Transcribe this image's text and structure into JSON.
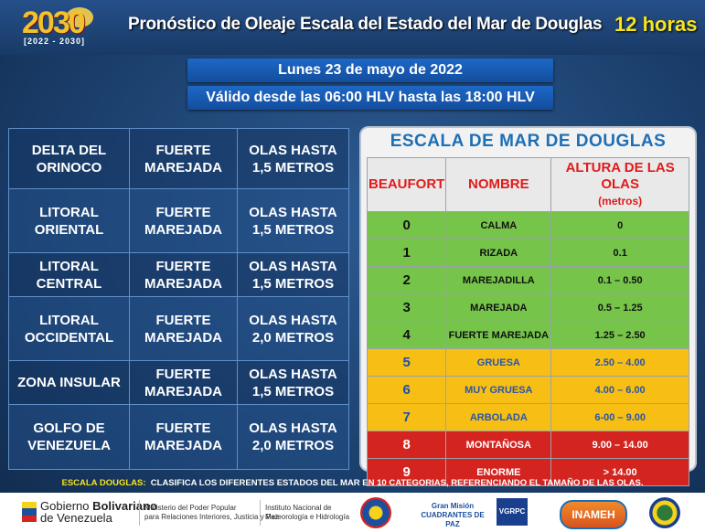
{
  "header": {
    "logo_year": "2030",
    "logo_range": "[2022 - 2030]",
    "title": "Pronóstico de Oleaje Escala del Estado del Mar de Douglas",
    "hours": "12 horas"
  },
  "date_line": "Lunes 23 de mayo de 2022",
  "valid_line": "Válido desde las 06:00 HLV hasta las 18:00 HLV",
  "forecast": [
    {
      "region": "DELTA DEL ORINOCO",
      "state": "FUERTE MAREJADA",
      "waves": "OLAS HASTA 1,5 METROS"
    },
    {
      "region": "LITORAL ORIENTAL",
      "state": "FUERTE MAREJADA",
      "waves": "OLAS HASTA 1,5 METROS"
    },
    {
      "region": "LITORAL CENTRAL",
      "state": "FUERTE MAREJADA",
      "waves": "OLAS HASTA 1,5 METROS"
    },
    {
      "region": "LITORAL OCCIDENTAL",
      "state": "FUERTE MAREJADA",
      "waves": "OLAS HASTA 2,0 METROS"
    },
    {
      "region": "ZONA INSULAR",
      "state": "FUERTE MAREJADA",
      "waves": "OLAS HASTA 1,5 METROS"
    },
    {
      "region": "GOLFO DE VENEZUELA",
      "state": "FUERTE MAREJADA",
      "waves": "OLAS HASTA 2,0 METROS"
    }
  ],
  "scale": {
    "title": "ESCALA  DE MAR DE DOUGLAS",
    "col_beaufort": "BEAUFORT",
    "col_name": "NOMBRE",
    "col_height": "ALTURA DE LAS OLAS",
    "col_height_unit": "(metros)",
    "rows": [
      {
        "b": "0",
        "name": "CALMA",
        "h": "0"
      },
      {
        "b": "1",
        "name": "RIZADA",
        "h": "0.1"
      },
      {
        "b": "2",
        "name": "MAREJADILLA",
        "h": "0.1 – 0.50"
      },
      {
        "b": "3",
        "name": "MAREJADA",
        "h": "0.5 – 1.25"
      },
      {
        "b": "4",
        "name": "FUERTE MAREJADA",
        "h": "1.25 – 2.50"
      },
      {
        "b": "5",
        "name": "GRUESA",
        "h": "2.50 – 4.00"
      },
      {
        "b": "6",
        "name": "MUY GRUESA",
        "h": "4.00 – 6.00"
      },
      {
        "b": "7",
        "name": "ARBOLADA",
        "h": "6-00 – 9.00"
      },
      {
        "b": "8",
        "name": "MONTAÑOSA",
        "h": "9.00 – 14.00"
      },
      {
        "b": "9",
        "name": "ENORME",
        "h": "> 14.00"
      }
    ],
    "colors": {
      "calm": "#76c44a",
      "moderate": "#f7be14",
      "severe": "#d3241f"
    }
  },
  "note": {
    "label": "ESCALA DOUGLAS:",
    "text": "CLASIFICA LOS DIFERENTES ESTADOS DEL MAR EN 10 CATEGORIAS, REFERENCIANDO EL TAMAÑO DE LAS OLAS."
  },
  "footer": {
    "gob_line1_a": "Gobierno ",
    "gob_line1_b": "Bolivariano",
    "gob_line2": "de Venezuela",
    "ministry_line1": "Ministerio del Poder Popular",
    "ministry_line2": "para Relaciones Interiores, Justicia y Paz",
    "inst_line1": "Instituto Nacional de",
    "inst_line2": "Meteorología e Hidrología",
    "gran_mision": "Gran Misión CUADRANTES DE PAZ",
    "vgrpc": "VGRPC",
    "inameh": "INAMEH"
  }
}
